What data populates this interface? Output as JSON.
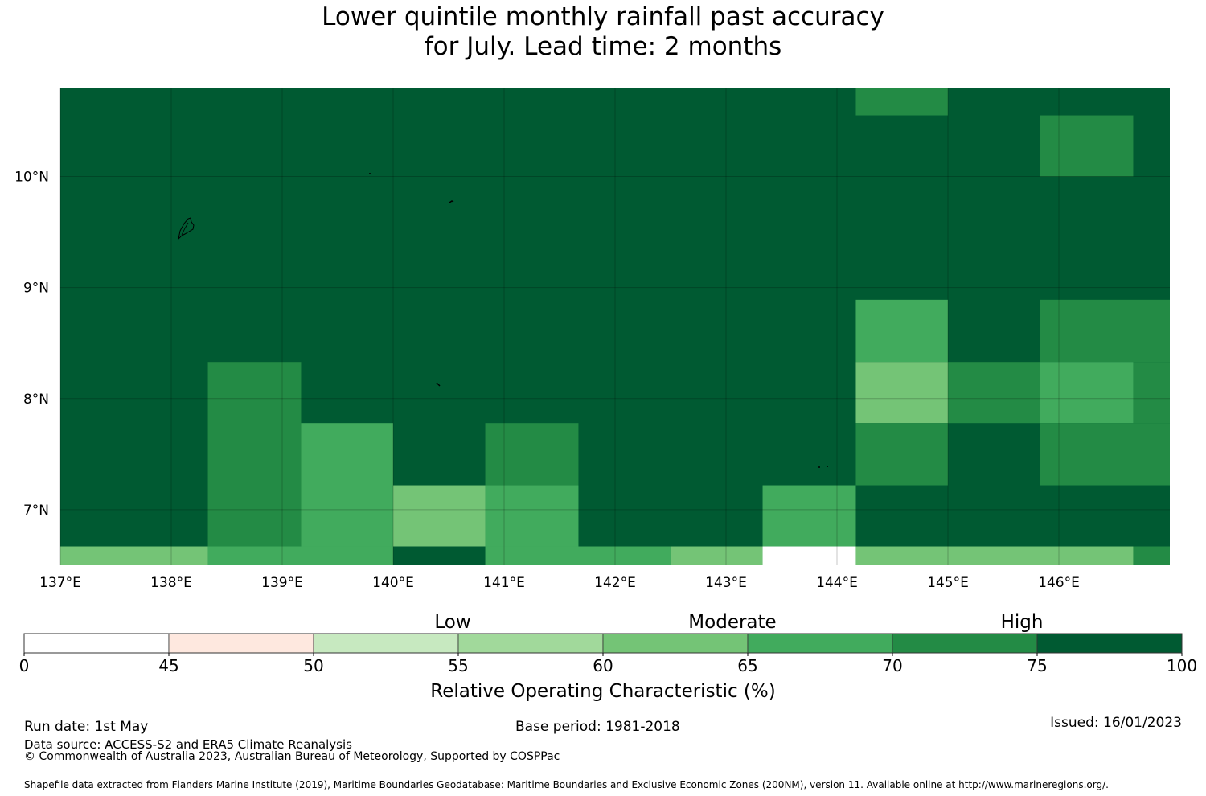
{
  "title": {
    "line1": "Lower quintile monthly rainfall past accuracy",
    "line2": "for July. Lead time: 2 months"
  },
  "map": {
    "lon_range": [
      137.0,
      147.0
    ],
    "lat_range": [
      6.5,
      10.8
    ],
    "x_ticks": [
      137,
      138,
      139,
      140,
      141,
      142,
      143,
      144,
      145,
      146
    ],
    "x_tick_labels": [
      "137°E",
      "138°E",
      "139°E",
      "140°E",
      "141°E",
      "142°E",
      "143°E",
      "144°E",
      "145°E",
      "146°E"
    ],
    "y_ticks": [
      7,
      8,
      9,
      10
    ],
    "y_tick_labels": [
      "7°N",
      "8°N",
      "9°N",
      "10°N"
    ],
    "grid": true,
    "background_color": "#005a32"
  },
  "chart_data": {
    "type": "heatmap",
    "title": "Lower quintile monthly rainfall past accuracy for July. Lead time: 2 months",
    "value_units": "Relative Operating Characteristic (%)",
    "default_value_class": "75-100",
    "cells": [
      {
        "lon": [
          144.17,
          145.0
        ],
        "lat": [
          10.55,
          10.8
        ],
        "class": "70-75"
      },
      {
        "lon": [
          145.83,
          146.67
        ],
        "lat": [
          10.0,
          10.55
        ],
        "class": "70-75"
      },
      {
        "lon": [
          144.17,
          145.0
        ],
        "lat": [
          8.33,
          8.89
        ],
        "class": "65-70"
      },
      {
        "lon": [
          145.83,
          147.0
        ],
        "lat": [
          8.33,
          8.89
        ],
        "class": "70-75"
      },
      {
        "lon": [
          144.17,
          145.0
        ],
        "lat": [
          7.78,
          8.33
        ],
        "class": "60-65"
      },
      {
        "lon": [
          145.0,
          145.83
        ],
        "lat": [
          7.78,
          8.33
        ],
        "class": "70-75"
      },
      {
        "lon": [
          145.83,
          146.67
        ],
        "lat": [
          7.78,
          8.33
        ],
        "class": "65-70"
      },
      {
        "lon": [
          146.67,
          147.0
        ],
        "lat": [
          7.78,
          8.33
        ],
        "class": "70-75"
      },
      {
        "lon": [
          138.33,
          139.17
        ],
        "lat": [
          6.67,
          8.33
        ],
        "class": "70-75"
      },
      {
        "lon": [
          139.17,
          140.0
        ],
        "lat": [
          6.67,
          7.78
        ],
        "class": "65-70"
      },
      {
        "lon": [
          140.83,
          141.67
        ],
        "lat": [
          7.22,
          7.78
        ],
        "class": "70-75"
      },
      {
        "lon": [
          144.17,
          145.0
        ],
        "lat": [
          7.22,
          7.78
        ],
        "class": "70-75"
      },
      {
        "lon": [
          145.83,
          147.0
        ],
        "lat": [
          7.22,
          7.78
        ],
        "class": "70-75"
      },
      {
        "lon": [
          140.0,
          140.83
        ],
        "lat": [
          6.67,
          7.22
        ],
        "class": "60-65"
      },
      {
        "lon": [
          140.83,
          141.67
        ],
        "lat": [
          6.67,
          7.22
        ],
        "class": "65-70"
      },
      {
        "lon": [
          143.33,
          144.17
        ],
        "lat": [
          6.67,
          7.22
        ],
        "class": "65-70"
      },
      {
        "lon": [
          137.0,
          138.33
        ],
        "lat": [
          6.5,
          6.67
        ],
        "class": "60-65"
      },
      {
        "lon": [
          138.33,
          140.0
        ],
        "lat": [
          6.5,
          6.67
        ],
        "class": "65-70"
      },
      {
        "lon": [
          140.0,
          140.83
        ],
        "lat": [
          6.5,
          6.67
        ],
        "class": "75-100"
      },
      {
        "lon": [
          140.83,
          142.5
        ],
        "lat": [
          6.5,
          6.67
        ],
        "class": "65-70"
      },
      {
        "lon": [
          142.5,
          143.33
        ],
        "lat": [
          6.5,
          6.67
        ],
        "class": "60-65"
      },
      {
        "lon": [
          143.33,
          144.17
        ],
        "lat": [
          6.5,
          6.67
        ],
        "class": "0-45"
      },
      {
        "lon": [
          144.17,
          146.67
        ],
        "lat": [
          6.5,
          6.67
        ],
        "class": "60-65"
      },
      {
        "lon": [
          146.67,
          147.0
        ],
        "lat": [
          6.5,
          6.67
        ],
        "class": "70-75"
      }
    ]
  },
  "colorbar": {
    "boundaries": [
      0,
      45,
      50,
      55,
      60,
      65,
      70,
      75,
      100
    ],
    "tick_labels": [
      "0",
      "45",
      "50",
      "55",
      "60",
      "65",
      "70",
      "75",
      "100"
    ],
    "colors": [
      "#ffffff",
      "#fee8df",
      "#c7e9c0",
      "#a1d99b",
      "#74c476",
      "#41ab5d",
      "#238b45",
      "#005a32"
    ],
    "class_names": [
      "0-45",
      "45-50",
      "50-55",
      "55-60",
      "60-65",
      "65-70",
      "70-75",
      "75-100"
    ],
    "category_labels": [
      "Low",
      "Moderate",
      "High"
    ],
    "label": "Relative Operating Characteristic (%)"
  },
  "footer": {
    "run_date": "Run date: 1st May",
    "base_period": "Base period: 1981-2018",
    "issued": "Issued: 16/01/2023",
    "data_source": "Data source: ACCESS-S2 and ERA5 Climate Reanalysis",
    "copyright": "© Commonwealth of Australia 2023, Australian Bureau of Meteorology, Supported by COSPPac",
    "shapefile": "Shapefile data extracted from Flanders Marine Institute (2019), Maritime Boundaries Geodatabase: Maritime Boundaries and Exclusive Economic Zones (200NM), version 11. Available online at http://www.marineregions.org/."
  }
}
